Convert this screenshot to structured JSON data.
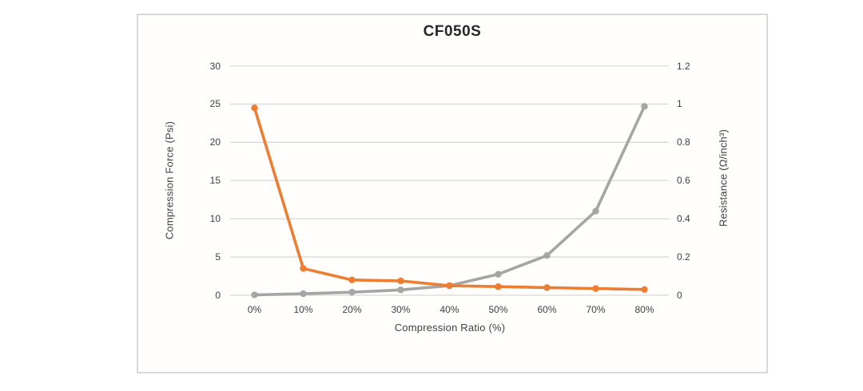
{
  "title": "CF050S",
  "colors": {
    "series_compression_force": "#a5a5a5",
    "series_resistance": "#ed7d31",
    "gridline": "#d9d9d9",
    "frame_border": "#d8d8d8",
    "tick_text": "#404040",
    "title_text": "#262626"
  },
  "chart_data": {
    "type": "line",
    "title": "CF050S",
    "categories": [
      "0%",
      "10%",
      "20%",
      "30%",
      "40%",
      "50%",
      "60%",
      "70%",
      "80%"
    ],
    "xlabel": "Compression Ratio (%)",
    "ylabel_left": "Compression Force (Psi)",
    "ylabel_right": "Resistance (Ω/inch³)",
    "left_axis": {
      "min": 0,
      "max": 30,
      "ticks": [
        0,
        5,
        10,
        15,
        20,
        25,
        30
      ],
      "tick_labels": [
        "0",
        "5",
        "10",
        "15",
        "20",
        "25",
        "30"
      ]
    },
    "right_axis": {
      "min": 0,
      "max": 1.2,
      "ticks": [
        0,
        0.2,
        0.4,
        0.6,
        0.8,
        1,
        1.2
      ],
      "tick_labels": [
        "0",
        "0.2",
        "0.4",
        "0.6",
        "0.8",
        "1",
        "1.2"
      ]
    },
    "grid": true,
    "legend": "none",
    "series": [
      {
        "name": "Compression Force",
        "axis": "left",
        "color": "#a5a5a5",
        "values": [
          0.05,
          0.2,
          0.4,
          0.7,
          1.25,
          2.75,
          5.2,
          11,
          24.7
        ]
      },
      {
        "name": "Resistance",
        "axis": "right",
        "color": "#ed7d31",
        "values": [
          0.98,
          0.14,
          0.08,
          0.075,
          0.05,
          0.045,
          0.04,
          0.035,
          0.03
        ]
      }
    ]
  }
}
